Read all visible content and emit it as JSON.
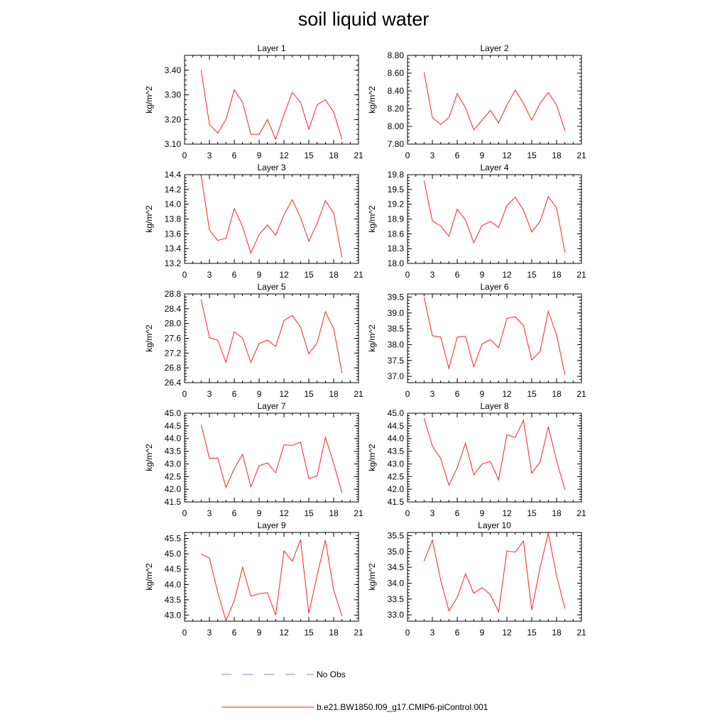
{
  "title": "soil liquid water",
  "legend": [
    {
      "label": "No Obs",
      "color": "#7f7fd9",
      "style": "dashed"
    },
    {
      "label": "b.e21.BW1850.f09_g17.CMIP6-piControl.001",
      "color": "#ff2020",
      "style": "solid"
    }
  ],
  "chart_data": [
    {
      "type": "line",
      "title": "Layer 1",
      "ylabel": "kg/m^2",
      "xlim": [
        0,
        21
      ],
      "ylim": [
        3.1,
        3.46
      ],
      "xticks": [
        "0",
        "3",
        "6",
        "9",
        "12",
        "15",
        "18",
        "21"
      ],
      "yticks": [
        "3.10",
        "3.20",
        "3.30",
        "3.40"
      ],
      "x": [
        2,
        3,
        4,
        5,
        6,
        7,
        8,
        9,
        10,
        11,
        12,
        13,
        14,
        15,
        16,
        17,
        18,
        19
      ],
      "series": [
        {
          "name": "b.e21.BW1850.f09_g17.CMIP6-piControl.001",
          "values": [
            3.4,
            3.18,
            3.145,
            3.2,
            3.32,
            3.27,
            3.14,
            3.14,
            3.2,
            3.12,
            3.22,
            3.31,
            3.27,
            3.16,
            3.26,
            3.28,
            3.23,
            3.12
          ]
        }
      ]
    },
    {
      "type": "line",
      "title": "Layer 2",
      "ylabel": "kg/m^2",
      "xlim": [
        0,
        21
      ],
      "ylim": [
        7.8,
        8.8
      ],
      "xticks": [
        "0",
        "3",
        "6",
        "9",
        "12",
        "15",
        "18",
        "21"
      ],
      "yticks": [
        "7.80",
        "8.00",
        "8.20",
        "8.40",
        "8.60",
        "8.80"
      ],
      "x": [
        2,
        3,
        4,
        5,
        6,
        7,
        8,
        9,
        10,
        11,
        12,
        13,
        14,
        15,
        16,
        17,
        18,
        19
      ],
      "series": [
        {
          "name": "b.e21.BW1850.f09_g17.CMIP6-piControl.001",
          "values": [
            8.61,
            8.1,
            8.02,
            8.1,
            8.37,
            8.21,
            7.96,
            8.07,
            8.18,
            8.04,
            8.24,
            8.41,
            8.26,
            8.07,
            8.26,
            8.38,
            8.24,
            7.95
          ]
        }
      ]
    },
    {
      "type": "line",
      "title": "Layer 3",
      "ylabel": "kg/m^2",
      "xlim": [
        0,
        21
      ],
      "ylim": [
        13.2,
        14.4
      ],
      "xticks": [
        "0",
        "3",
        "6",
        "9",
        "12",
        "15",
        "18",
        "21"
      ],
      "yticks": [
        "13.2",
        "13.4",
        "13.6",
        "13.8",
        "14.0",
        "14.2",
        "14.4"
      ],
      "x": [
        2,
        3,
        4,
        5,
        6,
        7,
        8,
        9,
        10,
        11,
        12,
        13,
        14,
        15,
        16,
        17,
        18,
        19
      ],
      "series": [
        {
          "name": "b.e21.BW1850.f09_g17.CMIP6-piControl.001",
          "values": [
            14.39,
            13.65,
            13.51,
            13.54,
            13.94,
            13.7,
            13.34,
            13.59,
            13.72,
            13.58,
            13.86,
            14.06,
            13.82,
            13.5,
            13.74,
            14.05,
            13.88,
            13.28
          ]
        }
      ]
    },
    {
      "type": "line",
      "title": "Layer 4",
      "ylabel": "kg/m^2",
      "xlim": [
        0,
        21
      ],
      "ylim": [
        18.0,
        19.8
      ],
      "xticks": [
        "0",
        "3",
        "6",
        "9",
        "12",
        "15",
        "18",
        "21"
      ],
      "yticks": [
        "18.0",
        "18.3",
        "18.6",
        "18.9",
        "19.2",
        "19.5",
        "19.8"
      ],
      "x": [
        2,
        3,
        4,
        5,
        6,
        7,
        8,
        9,
        10,
        11,
        12,
        13,
        14,
        15,
        16,
        17,
        18,
        19
      ],
      "series": [
        {
          "name": "b.e21.BW1850.f09_g17.CMIP6-piControl.001",
          "values": [
            19.68,
            18.86,
            18.76,
            18.55,
            19.1,
            18.88,
            18.42,
            18.77,
            18.85,
            18.73,
            19.17,
            19.34,
            19.08,
            18.64,
            18.85,
            19.36,
            19.12,
            18.22
          ]
        }
      ]
    },
    {
      "type": "line",
      "title": "Layer 5",
      "ylabel": "kg/m^2",
      "xlim": [
        0,
        21
      ],
      "ylim": [
        26.4,
        28.8
      ],
      "xticks": [
        "0",
        "3",
        "6",
        "9",
        "12",
        "15",
        "18",
        "21"
      ],
      "yticks": [
        "26.4",
        "26.8",
        "27.2",
        "27.6",
        "28.0",
        "28.4",
        "28.8"
      ],
      "x": [
        2,
        3,
        4,
        5,
        6,
        7,
        8,
        9,
        10,
        11,
        12,
        13,
        14,
        15,
        16,
        17,
        18,
        19
      ],
      "series": [
        {
          "name": "b.e21.BW1850.f09_g17.CMIP6-piControl.001",
          "values": [
            28.65,
            27.62,
            27.55,
            26.95,
            27.78,
            27.6,
            26.95,
            27.46,
            27.55,
            27.38,
            28.08,
            28.22,
            27.9,
            27.18,
            27.48,
            28.32,
            27.86,
            26.66
          ]
        }
      ]
    },
    {
      "type": "line",
      "title": "Layer 6",
      "ylabel": "kg/m^2",
      "xlim": [
        0,
        21
      ],
      "ylim": [
        36.8,
        39.6
      ],
      "xticks": [
        "0",
        "3",
        "6",
        "9",
        "12",
        "15",
        "18",
        "21"
      ],
      "yticks": [
        "37.0",
        "37.5",
        "38.0",
        "38.5",
        "39.0",
        "39.5"
      ],
      "x": [
        2,
        3,
        4,
        5,
        6,
        7,
        8,
        9,
        10,
        11,
        12,
        13,
        14,
        15,
        16,
        17,
        18,
        19
      ],
      "series": [
        {
          "name": "b.e21.BW1850.f09_g17.CMIP6-piControl.001",
          "values": [
            39.5,
            38.28,
            38.24,
            37.25,
            38.24,
            38.26,
            37.3,
            38.02,
            38.16,
            37.9,
            38.83,
            38.88,
            38.6,
            37.52,
            37.78,
            39.05,
            38.3,
            37.05
          ]
        }
      ]
    },
    {
      "type": "line",
      "title": "Layer 7",
      "ylabel": "kg/m^2",
      "xlim": [
        0,
        21
      ],
      "ylim": [
        41.5,
        45.0
      ],
      "xticks": [
        "0",
        "3",
        "6",
        "9",
        "12",
        "15",
        "18",
        "21"
      ],
      "yticks": [
        "41.5",
        "42.0",
        "42.5",
        "43.0",
        "43.5",
        "44.0",
        "44.5",
        "45.0"
      ],
      "x": [
        2,
        3,
        4,
        5,
        6,
        7,
        8,
        9,
        10,
        11,
        12,
        13,
        14,
        15,
        16,
        17,
        18,
        19
      ],
      "series": [
        {
          "name": "b.e21.BW1850.f09_g17.CMIP6-piControl.001",
          "values": [
            44.55,
            43.22,
            43.23,
            42.07,
            42.82,
            43.38,
            42.1,
            42.93,
            43.04,
            42.65,
            43.75,
            43.73,
            43.86,
            42.42,
            42.53,
            44.05,
            43.02,
            41.85
          ]
        }
      ]
    },
    {
      "type": "line",
      "title": "Layer 8",
      "ylabel": "kg/m^2",
      "xlim": [
        0,
        21
      ],
      "ylim": [
        41.5,
        45.0
      ],
      "xticks": [
        "0",
        "3",
        "6",
        "9",
        "12",
        "15",
        "18",
        "21"
      ],
      "yticks": [
        "41.5",
        "42.0",
        "42.5",
        "43.0",
        "43.5",
        "44.0",
        "44.5",
        "45.0"
      ],
      "x": [
        2,
        3,
        4,
        5,
        6,
        7,
        8,
        9,
        10,
        11,
        12,
        13,
        14,
        15,
        16,
        17,
        18,
        19
      ],
      "series": [
        {
          "name": "b.e21.BW1850.f09_g17.CMIP6-piControl.001",
          "values": [
            44.8,
            43.7,
            43.22,
            42.16,
            42.85,
            43.82,
            42.57,
            43.0,
            43.1,
            42.37,
            44.15,
            44.04,
            44.72,
            42.63,
            43.08,
            44.47,
            43.12,
            41.98
          ]
        }
      ]
    },
    {
      "type": "line",
      "title": "Layer 9",
      "ylabel": "kg/m^2",
      "xlim": [
        0,
        21
      ],
      "ylim": [
        42.8,
        45.7
      ],
      "xticks": [
        "0",
        "3",
        "6",
        "9",
        "12",
        "15",
        "18",
        "21"
      ],
      "yticks": [
        "43.0",
        "43.5",
        "44.0",
        "44.5",
        "45.0",
        "45.5"
      ],
      "x": [
        2,
        3,
        4,
        5,
        6,
        7,
        8,
        9,
        10,
        11,
        12,
        13,
        14,
        15,
        16,
        17,
        18,
        19
      ],
      "series": [
        {
          "name": "b.e21.BW1850.f09_g17.CMIP6-piControl.001",
          "values": [
            45.0,
            44.86,
            43.75,
            42.82,
            43.47,
            44.56,
            43.62,
            43.7,
            43.73,
            43.0,
            45.1,
            44.76,
            45.46,
            43.06,
            44.3,
            45.45,
            43.82,
            42.97
          ]
        }
      ]
    },
    {
      "type": "line",
      "title": "Layer 10",
      "ylabel": "kg/m^2",
      "xlim": [
        0,
        21
      ],
      "ylim": [
        32.8,
        35.6
      ],
      "xticks": [
        "0",
        "3",
        "6",
        "9",
        "12",
        "15",
        "18",
        "21"
      ],
      "yticks": [
        "33.0",
        "33.5",
        "34.0",
        "34.5",
        "35.0",
        "35.5"
      ],
      "x": [
        2,
        3,
        4,
        5,
        6,
        7,
        8,
        9,
        10,
        11,
        12,
        13,
        14,
        15,
        16,
        17,
        18,
        19
      ],
      "series": [
        {
          "name": "b.e21.BW1850.f09_g17.CMIP6-piControl.001",
          "values": [
            34.7,
            35.36,
            34.1,
            33.13,
            33.55,
            34.3,
            33.68,
            33.86,
            33.64,
            33.1,
            35.02,
            34.98,
            35.33,
            33.15,
            34.49,
            35.58,
            34.23,
            33.2
          ]
        }
      ]
    }
  ]
}
